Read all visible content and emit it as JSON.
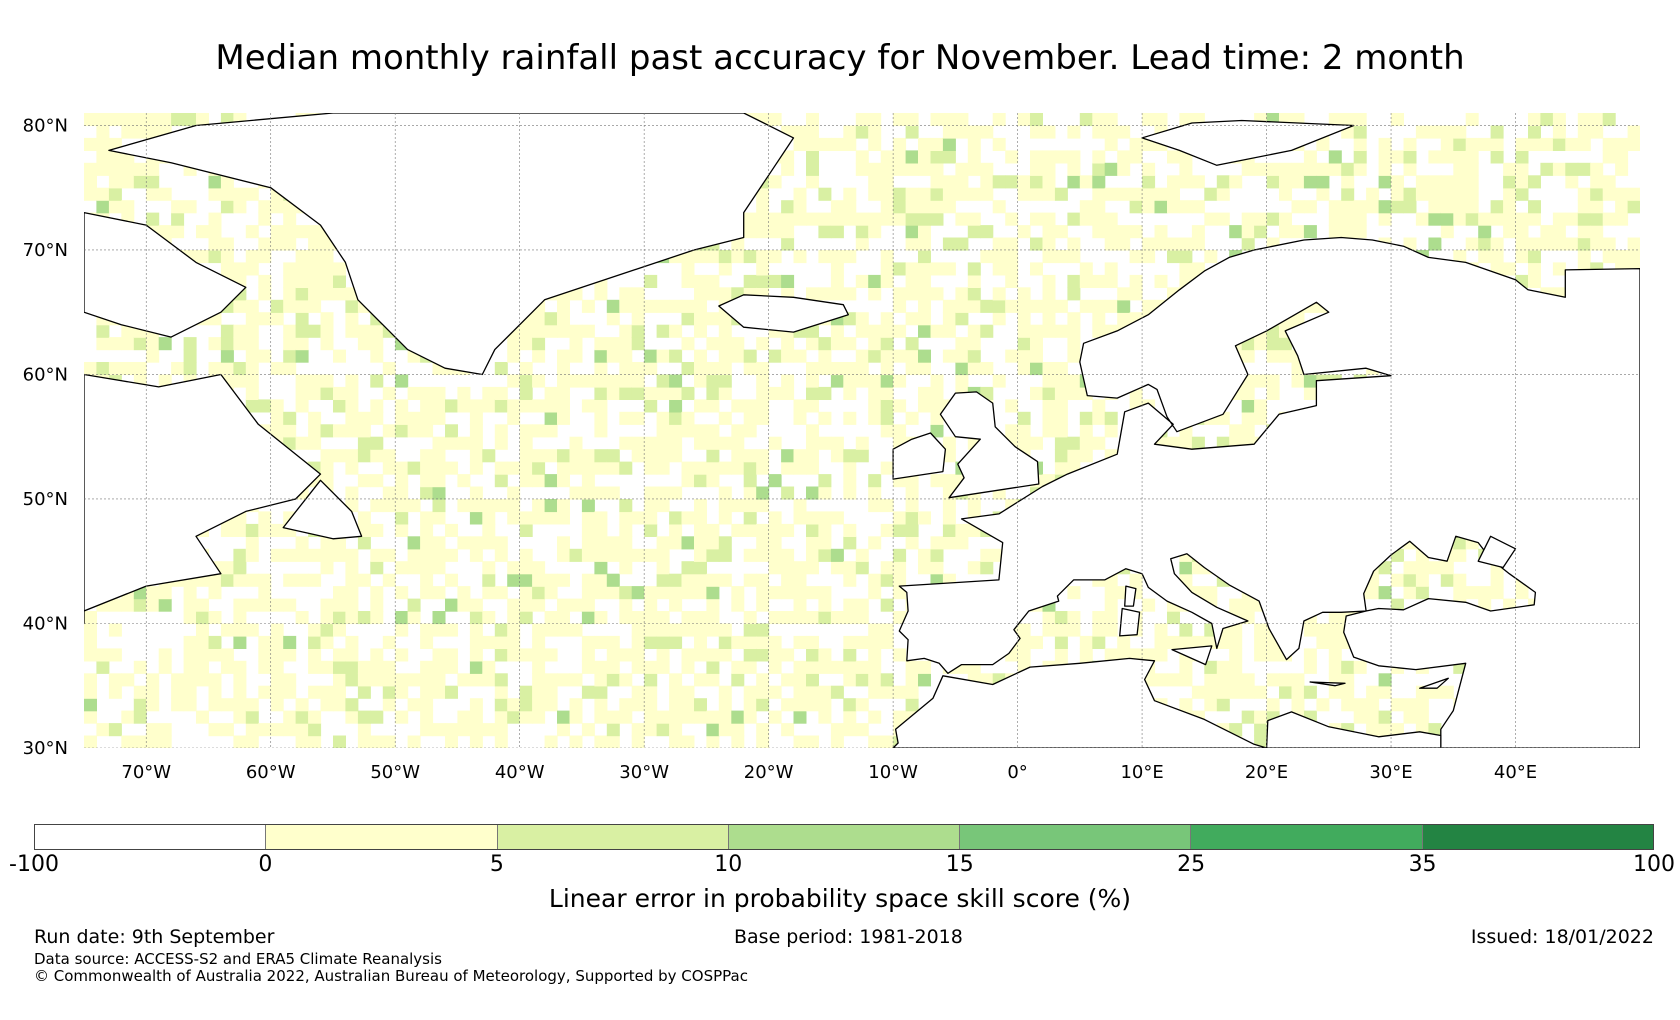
{
  "title": "Median monthly rainfall past accuracy for November. Lead time: 2 month",
  "map": {
    "extent": {
      "lon_min": -75,
      "lon_max": 50,
      "lat_min": 30,
      "lat_max": 81
    },
    "lat_ticks": [
      "30°N",
      "40°N",
      "50°N",
      "60°N",
      "70°N",
      "80°N"
    ],
    "lat_values": [
      30,
      40,
      50,
      60,
      70,
      80
    ],
    "lon_ticks": [
      "70°W",
      "60°W",
      "50°W",
      "40°W",
      "30°W",
      "20°W",
      "10°W",
      "0°",
      "10°E",
      "20°E",
      "30°E",
      "40°E"
    ],
    "lon_values": [
      -70,
      -60,
      -50,
      -40,
      -30,
      -20,
      -10,
      0,
      10,
      20,
      30,
      40
    ],
    "grid": true,
    "coastline_color": "#000000"
  },
  "colorbar": {
    "tick_labels": [
      "-100",
      "0",
      "5",
      "10",
      "15",
      "25",
      "35",
      "100"
    ],
    "colors": [
      "#ffffff",
      "#ffffcc",
      "#d9f0a3",
      "#addd8e",
      "#78c679",
      "#41ab5d",
      "#238443"
    ],
    "label": "Linear error in probability space skill score (%)"
  },
  "footer": {
    "run_date": "Run date: 9th September",
    "base_period": "Base period: 1981-2018",
    "issued": "Issued: 18/01/2022",
    "data_source": "Data source: ACCESS-S2 and ERA5 Climate Reanalysis",
    "copyright": "© Commonwealth of Australia 2022, Australian Bureau of Meteorology, Supported by COSPPac"
  }
}
